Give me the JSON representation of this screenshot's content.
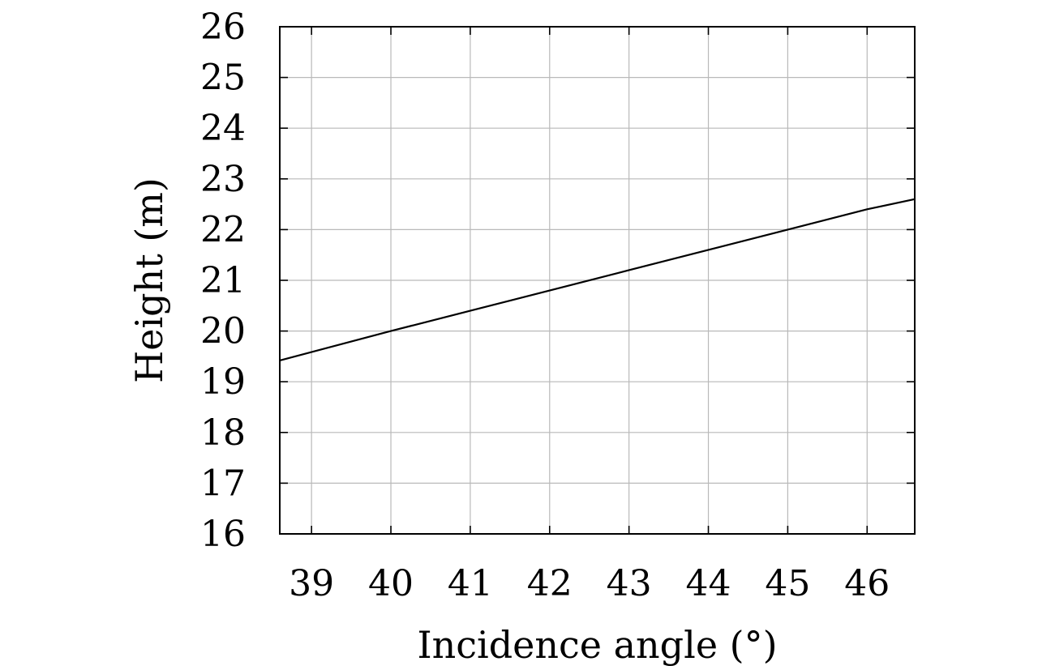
{
  "chart_data": {
    "type": "line",
    "title": "",
    "xlabel": "Incidence angle (°)",
    "ylabel": "Height (m)",
    "xlim": [
      38.6,
      46.6
    ],
    "ylim": [
      16,
      26
    ],
    "xticks": [
      39,
      40,
      41,
      42,
      43,
      44,
      45,
      46
    ],
    "yticks": [
      16,
      17,
      18,
      19,
      20,
      21,
      22,
      23,
      24,
      25,
      26
    ],
    "grid": true,
    "series": [
      {
        "x": [
          38.6,
          40,
          41,
          42,
          43,
          44,
          45,
          46,
          46.6
        ],
        "y": [
          19.42,
          20.0,
          20.4,
          20.8,
          21.2,
          21.6,
          22.0,
          22.4,
          22.6
        ],
        "color": "#000000"
      }
    ]
  }
}
